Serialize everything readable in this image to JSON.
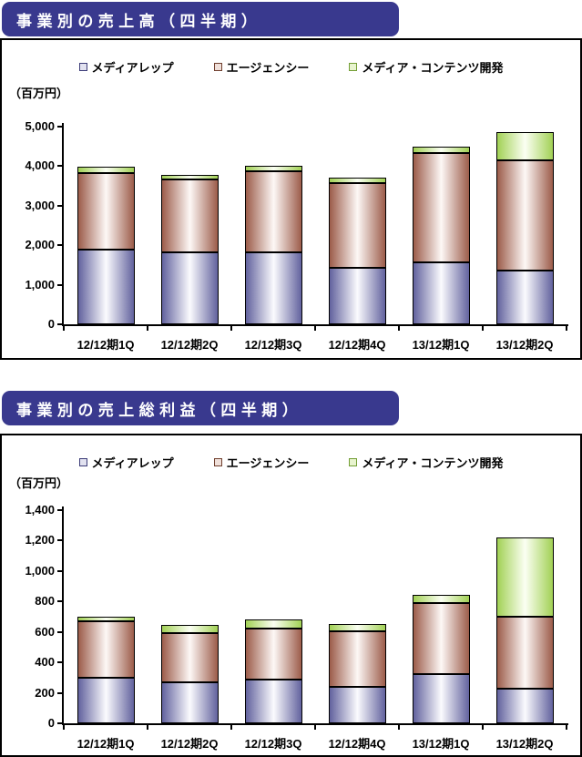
{
  "page": {
    "background": "#ffffff",
    "title_bar_color": "#39398e",
    "title_text_color": "#ffffff"
  },
  "chart_data": [
    {
      "type": "bar",
      "stacked": true,
      "title": "事業別の売上高（四半期）",
      "unit_label": "（百万円）",
      "categories": [
        "12/12期1Q",
        "12/12期2Q",
        "12/12期3Q",
        "12/12期4Q",
        "13/12期1Q",
        "13/12期2Q"
      ],
      "series": [
        {
          "name": "メディアレップ",
          "values": [
            1900,
            1825,
            1825,
            1420,
            1560,
            1350
          ],
          "edge_color": "#62629e",
          "center_color": "#fbfbfe",
          "swatch_fill": "#e2e2f0",
          "swatch_border": "#3c3c78"
        },
        {
          "name": "エージェンシー",
          "values": [
            1930,
            1835,
            2055,
            2150,
            2780,
            2800
          ],
          "edge_color": "#9c5c4a",
          "center_color": "#fdf8f6",
          "swatch_fill": "#f0e0da",
          "swatch_border": "#70402f"
        },
        {
          "name": "メディア・コンテンツ開発",
          "values": [
            150,
            130,
            130,
            140,
            160,
            720
          ],
          "edge_color": "#a2d155",
          "center_color": "#fbfff3",
          "swatch_fill": "#e8f4cf",
          "swatch_border": "#739e35"
        }
      ],
      "ylim": [
        0,
        5000
      ],
      "ytick_step": 1000,
      "legend_position": "top",
      "grid": false
    },
    {
      "type": "bar",
      "stacked": true,
      "title": "事業別の売上総利益（四半期）",
      "unit_label": "（百万円）",
      "categories": [
        "12/12期1Q",
        "12/12期2Q",
        "12/12期3Q",
        "12/12期4Q",
        "13/12期1Q",
        "13/12期2Q"
      ],
      "series": [
        {
          "name": "メディアレップ",
          "values": [
            300,
            270,
            285,
            240,
            325,
            225
          ],
          "edge_color": "#62629e",
          "center_color": "#fbfbfe",
          "swatch_fill": "#e2e2f0",
          "swatch_border": "#3c3c78"
        },
        {
          "name": "エージェンシー",
          "values": [
            370,
            325,
            340,
            365,
            465,
            475
          ],
          "edge_color": "#9c5c4a",
          "center_color": "#fdf8f6",
          "swatch_fill": "#f0e0da",
          "swatch_border": "#70402f"
        },
        {
          "name": "メディア・コンテンツ開発",
          "values": [
            30,
            50,
            55,
            45,
            55,
            520
          ],
          "edge_color": "#a2d155",
          "center_color": "#fbfff3",
          "swatch_fill": "#e8f4cf",
          "swatch_border": "#739e35"
        }
      ],
      "ylim": [
        0,
        1400
      ],
      "ytick_step": 200,
      "legend_position": "top",
      "grid": false
    }
  ]
}
